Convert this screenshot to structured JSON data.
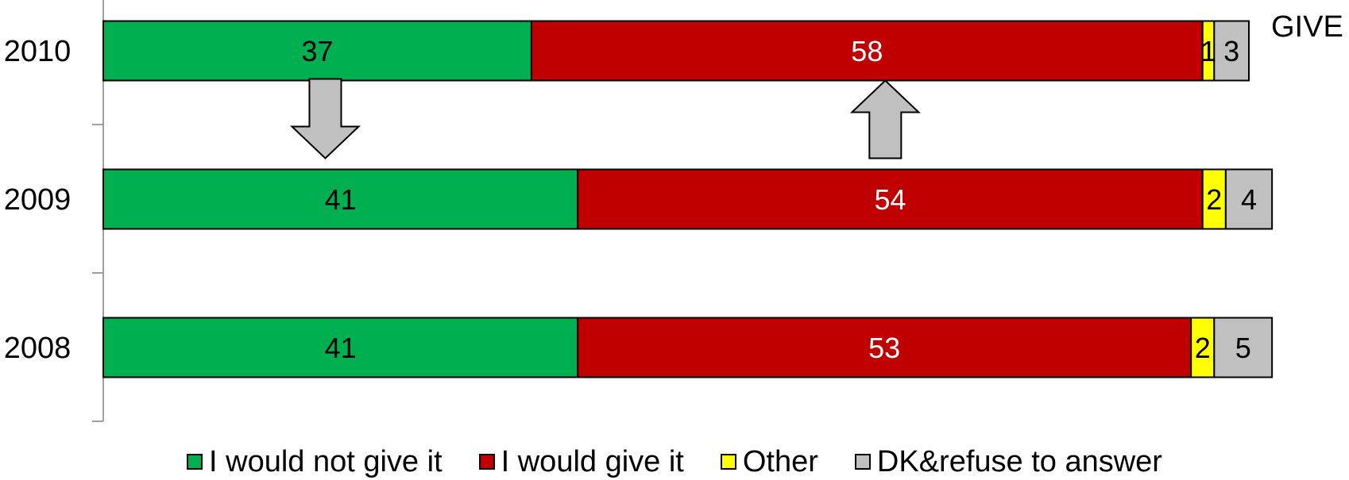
{
  "chart_data": {
    "type": "bar",
    "orientation": "horizontal",
    "stacked": true,
    "title": "GIVE",
    "categories": [
      "2010",
      "2009",
      "2008"
    ],
    "series": [
      {
        "name": "I would not give it",
        "color": "#00B050",
        "values": [
          37,
          41,
          41
        ],
        "label_color": "#000000"
      },
      {
        "name": "I would give it",
        "color": "#C00000",
        "values": [
          58,
          54,
          53
        ],
        "label_color": "#FFFFFF"
      },
      {
        "name": "Other",
        "color": "#FFFF00",
        "values": [
          1,
          2,
          2
        ],
        "label_color": "#000000"
      },
      {
        "name": "DK&refuse to answer",
        "color": "#C0C0C0",
        "values": [
          3,
          4,
          5
        ],
        "label_color": "#000000"
      }
    ],
    "xlim": [
      0,
      99
    ],
    "grid": false,
    "legend_position": "bottom",
    "annotations": [
      {
        "type": "arrow",
        "direction": "down",
        "series": "I would not give it",
        "color": "#C0C0C0"
      },
      {
        "type": "arrow",
        "direction": "up",
        "series": "I would give it",
        "color": "#C0C0C0"
      }
    ]
  }
}
